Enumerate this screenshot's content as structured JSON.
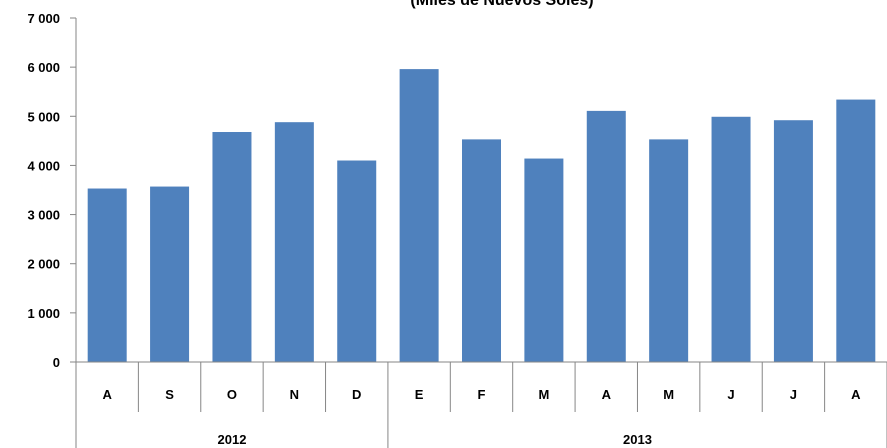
{
  "chart_data": {
    "type": "bar",
    "title": "(Miles de Nuevos Soles)",
    "categories": [
      "A",
      "S",
      "O",
      "N",
      "D",
      "E",
      "F",
      "M",
      "A",
      "M",
      "J",
      "J",
      "A"
    ],
    "groups": [
      {
        "label": "2012",
        "count": 5
      },
      {
        "label": "2013",
        "count": 8
      }
    ],
    "values": [
      3530,
      3570,
      4680,
      4880,
      4100,
      5960,
      4530,
      4140,
      5110,
      4530,
      4990,
      4920,
      5340
    ],
    "ylim": [
      0,
      7000
    ],
    "yticks": [
      0,
      1000,
      2000,
      3000,
      4000,
      5000,
      6000,
      7000
    ],
    "ytick_labels": [
      "0",
      "1 000",
      "2 000",
      "3 000",
      "4 000",
      "5 000",
      "6 000",
      "7 000"
    ],
    "xlabel": "",
    "ylabel": "",
    "grid": false,
    "legend": "none",
    "bar_color": "#4f81bd"
  }
}
